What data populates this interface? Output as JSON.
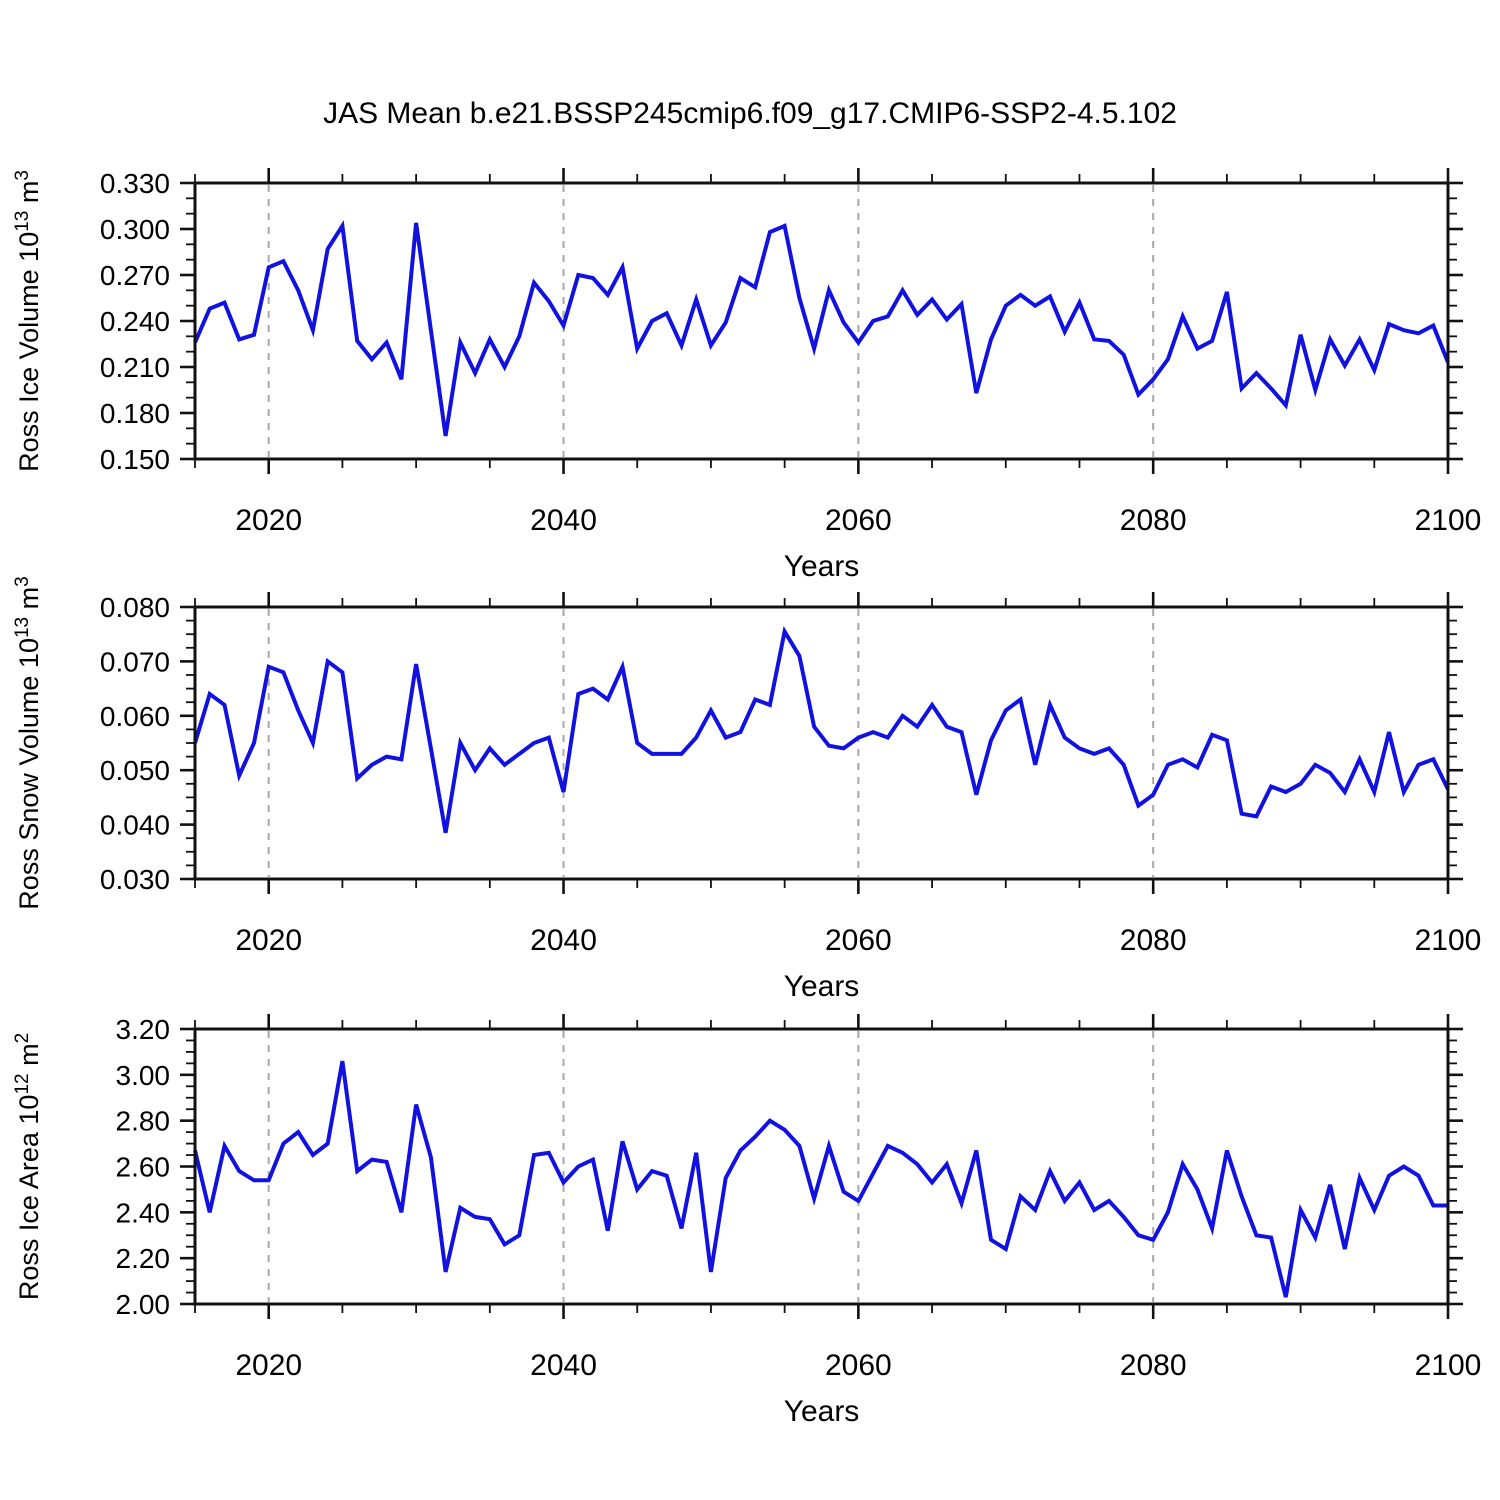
{
  "title": "JAS Mean b.e21.BSSP245cmip6.f09_g17.CMIP6-SSP2-4.5.102",
  "xlabel": "Years",
  "colors": {
    "line": "#1212e0",
    "axis": "#111111",
    "grid": "#a8a8a8",
    "text": "#000000"
  },
  "x_axis": {
    "start": 2015,
    "end": 2100,
    "step": 1,
    "ticks_major": [
      2020,
      2040,
      2060,
      2080,
      2100
    ],
    "tick_minor_step": 5,
    "gridlines_x": [
      2020,
      2040,
      2060,
      2080
    ]
  },
  "chart_data": [
    {
      "type": "line",
      "id": "ross-ice-volume",
      "ylabel": "Ross Ice Volume 10^13 m^3",
      "ylabel_parts": [
        {
          "t": "Ross Ice Volume 10"
        },
        {
          "t": "13",
          "sup": true
        },
        {
          "t": " m"
        },
        {
          "t": "3",
          "sup": true
        }
      ],
      "ylim": [
        0.15,
        0.33
      ],
      "ytick_major": 0.03,
      "ytick_minor": 0.01,
      "ytick_decimals": 3,
      "xlabel": "Years",
      "x_start": 2015,
      "values": [
        0.226,
        0.248,
        0.252,
        0.228,
        0.231,
        0.275,
        0.279,
        0.26,
        0.234,
        0.287,
        0.302,
        0.227,
        0.215,
        0.226,
        0.202,
        0.304,
        0.234,
        0.165,
        0.226,
        0.206,
        0.228,
        0.21,
        0.23,
        0.265,
        0.253,
        0.237,
        0.27,
        0.268,
        0.257,
        0.275,
        0.222,
        0.24,
        0.245,
        0.224,
        0.254,
        0.224,
        0.239,
        0.268,
        0.262,
        0.298,
        0.302,
        0.255,
        0.222,
        0.26,
        0.239,
        0.226,
        0.24,
        0.243,
        0.26,
        0.244,
        0.254,
        0.241,
        0.251,
        0.193,
        0.228,
        0.25,
        0.257,
        0.25,
        0.256,
        0.233,
        0.252,
        0.228,
        0.227,
        0.218,
        0.192,
        0.202,
        0.215,
        0.243,
        0.222,
        0.227,
        0.259,
        0.196,
        0.206,
        0.196,
        0.185,
        0.231,
        0.195,
        0.228,
        0.211,
        0.228,
        0.208,
        0.238,
        0.234,
        0.232,
        0.237,
        0.213
      ]
    },
    {
      "type": "line",
      "id": "ross-snow-volume",
      "ylabel": "Ross Snow Volume 10^13 m^3",
      "ylabel_parts": [
        {
          "t": "Ross Snow Volume 10"
        },
        {
          "t": "13",
          "sup": true
        },
        {
          "t": " m"
        },
        {
          "t": "3",
          "sup": true
        }
      ],
      "ylim": [
        0.03,
        0.08
      ],
      "ytick_major": 0.01,
      "ytick_minor": 0.0025,
      "ytick_decimals": 3,
      "xlabel": "Years",
      "x_start": 2015,
      "values": [
        0.055,
        0.064,
        0.062,
        0.049,
        0.055,
        0.069,
        0.068,
        0.061,
        0.055,
        0.07,
        0.068,
        0.0485,
        0.051,
        0.0525,
        0.052,
        0.0695,
        0.054,
        0.0385,
        0.055,
        0.05,
        0.054,
        0.051,
        0.053,
        0.055,
        0.056,
        0.046,
        0.064,
        0.065,
        0.063,
        0.069,
        0.055,
        0.053,
        0.053,
        0.053,
        0.056,
        0.061,
        0.056,
        0.057,
        0.063,
        0.062,
        0.0755,
        0.071,
        0.058,
        0.0545,
        0.054,
        0.056,
        0.057,
        0.056,
        0.06,
        0.058,
        0.062,
        0.058,
        0.057,
        0.0455,
        0.0555,
        0.061,
        0.063,
        0.051,
        0.062,
        0.056,
        0.054,
        0.053,
        0.054,
        0.051,
        0.0435,
        0.0455,
        0.051,
        0.052,
        0.0505,
        0.0565,
        0.0555,
        0.042,
        0.0415,
        0.047,
        0.046,
        0.0475,
        0.051,
        0.0495,
        0.046,
        0.052,
        0.046,
        0.057,
        0.046,
        0.051,
        0.052,
        0.0465
      ]
    },
    {
      "type": "line",
      "id": "ross-ice-area",
      "ylabel": "Ross Ice Area 10^12 m^2",
      "ylabel_parts": [
        {
          "t": "Ross Ice Area 10"
        },
        {
          "t": "12",
          "sup": true
        },
        {
          "t": " m"
        },
        {
          "t": "2",
          "sup": true
        }
      ],
      "ylim": [
        2.0,
        3.2
      ],
      "ytick_major": 0.2,
      "ytick_minor": 0.05,
      "ytick_decimals": 2,
      "xlabel": "Years",
      "x_start": 2015,
      "values": [
        2.67,
        2.4,
        2.69,
        2.58,
        2.54,
        2.54,
        2.7,
        2.75,
        2.65,
        2.7,
        3.06,
        2.58,
        2.63,
        2.62,
        2.4,
        2.87,
        2.64,
        2.14,
        2.42,
        2.38,
        2.37,
        2.26,
        2.3,
        2.65,
        2.66,
        2.53,
        2.6,
        2.63,
        2.32,
        2.71,
        2.5,
        2.58,
        2.56,
        2.33,
        2.66,
        2.14,
        2.55,
        2.67,
        2.73,
        2.8,
        2.76,
        2.69,
        2.46,
        2.69,
        2.49,
        2.45,
        2.57,
        2.69,
        2.66,
        2.61,
        2.53,
        2.61,
        2.44,
        2.67,
        2.28,
        2.24,
        2.47,
        2.41,
        2.58,
        2.45,
        2.53,
        2.41,
        2.45,
        2.38,
        2.3,
        2.28,
        2.4,
        2.61,
        2.5,
        2.33,
        2.67,
        2.47,
        2.3,
        2.29,
        2.03,
        2.41,
        2.29,
        2.52,
        2.24,
        2.55,
        2.41,
        2.56,
        2.6,
        2.56,
        2.43,
        2.43
      ]
    }
  ]
}
